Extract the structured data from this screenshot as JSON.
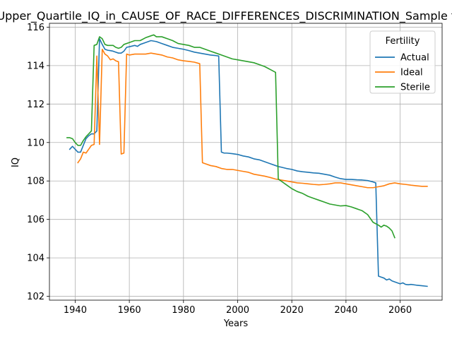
{
  "chart_data": {
    "type": "line",
    "title": "Upper_Quartile_IQ_in_CAUSE_OF_RACE_DIFFERENCES_DISCRIMINATION_Sample f",
    "xlabel": "Years",
    "ylabel": "IQ",
    "xlim": [
      1930.5,
      2075.5
    ],
    "ylim": [
      101.8,
      116.2
    ],
    "xticks": [
      1940,
      1960,
      1980,
      2000,
      2020,
      2040,
      2060
    ],
    "yticks": [
      102,
      104,
      106,
      108,
      110,
      112,
      114,
      116
    ],
    "grid": true,
    "legend": {
      "title": "Fertility",
      "position": "upper right"
    },
    "series": [
      {
        "name": "Actual",
        "color": "#1f77b4",
        "points": [
          [
            1938,
            109.65
          ],
          [
            1939,
            109.8
          ],
          [
            1940,
            109.65
          ],
          [
            1941,
            109.5
          ],
          [
            1942,
            109.5
          ],
          [
            1943,
            109.85
          ],
          [
            1944,
            110.2
          ],
          [
            1945,
            110.35
          ],
          [
            1946,
            110.45
          ],
          [
            1947,
            110.45
          ],
          [
            1948,
            110.6
          ],
          [
            1949,
            115.4
          ],
          [
            1950,
            115.1
          ],
          [
            1951,
            114.85
          ],
          [
            1952,
            114.8
          ],
          [
            1953,
            114.78
          ],
          [
            1954,
            114.75
          ],
          [
            1955,
            114.7
          ],
          [
            1956,
            114.65
          ],
          [
            1957,
            114.65
          ],
          [
            1958,
            114.75
          ],
          [
            1959,
            114.95
          ],
          [
            1960,
            114.98
          ],
          [
            1962,
            115.05
          ],
          [
            1963,
            115.0
          ],
          [
            1964,
            115.1
          ],
          [
            1966,
            115.2
          ],
          [
            1968,
            115.3
          ],
          [
            1970,
            115.25
          ],
          [
            1972,
            115.15
          ],
          [
            1974,
            115.05
          ],
          [
            1976,
            114.95
          ],
          [
            1978,
            114.9
          ],
          [
            1980,
            114.85
          ],
          [
            1982,
            114.78
          ],
          [
            1984,
            114.7
          ],
          [
            1986,
            114.65
          ],
          [
            1988,
            114.6
          ],
          [
            1990,
            114.55
          ],
          [
            1992,
            114.52
          ],
          [
            1993,
            114.5
          ],
          [
            1994,
            109.5
          ],
          [
            1995,
            109.45
          ],
          [
            1996,
            109.45
          ],
          [
            1998,
            109.42
          ],
          [
            2000,
            109.38
          ],
          [
            2002,
            109.3
          ],
          [
            2004,
            109.25
          ],
          [
            2006,
            109.15
          ],
          [
            2008,
            109.1
          ],
          [
            2010,
            109.0
          ],
          [
            2012,
            108.9
          ],
          [
            2014,
            108.8
          ],
          [
            2015,
            108.75
          ],
          [
            2016,
            108.72
          ],
          [
            2018,
            108.65
          ],
          [
            2020,
            108.6
          ],
          [
            2022,
            108.52
          ],
          [
            2024,
            108.48
          ],
          [
            2026,
            108.45
          ],
          [
            2028,
            108.42
          ],
          [
            2030,
            108.4
          ],
          [
            2032,
            108.35
          ],
          [
            2034,
            108.3
          ],
          [
            2036,
            108.2
          ],
          [
            2038,
            108.12
          ],
          [
            2040,
            108.08
          ],
          [
            2042,
            108.08
          ],
          [
            2044,
            108.06
          ],
          [
            2046,
            108.05
          ],
          [
            2048,
            108.02
          ],
          [
            2050,
            107.95
          ],
          [
            2051,
            107.9
          ],
          [
            2052,
            103.05
          ],
          [
            2053,
            103.0
          ],
          [
            2054,
            102.95
          ],
          [
            2055,
            102.85
          ],
          [
            2056,
            102.9
          ],
          [
            2057,
            102.8
          ],
          [
            2058,
            102.75
          ],
          [
            2059,
            102.7
          ],
          [
            2060,
            102.65
          ],
          [
            2061,
            102.7
          ],
          [
            2062,
            102.62
          ],
          [
            2063,
            102.6
          ],
          [
            2064,
            102.62
          ],
          [
            2066,
            102.58
          ],
          [
            2068,
            102.55
          ],
          [
            2070,
            102.52
          ]
        ]
      },
      {
        "name": "Ideal",
        "color": "#ff7f0e",
        "points": [
          [
            1941,
            108.95
          ],
          [
            1942,
            109.15
          ],
          [
            1943,
            109.5
          ],
          [
            1944,
            109.45
          ],
          [
            1945,
            109.65
          ],
          [
            1946,
            109.85
          ],
          [
            1947,
            109.9
          ],
          [
            1948,
            114.5
          ],
          [
            1949,
            109.9
          ],
          [
            1950,
            114.85
          ],
          [
            1951,
            114.6
          ],
          [
            1952,
            114.5
          ],
          [
            1953,
            114.3
          ],
          [
            1954,
            114.35
          ],
          [
            1955,
            114.25
          ],
          [
            1956,
            114.2
          ],
          [
            1957,
            109.4
          ],
          [
            1958,
            109.45
          ],
          [
            1959,
            114.6
          ],
          [
            1960,
            114.55
          ],
          [
            1962,
            114.6
          ],
          [
            1964,
            114.6
          ],
          [
            1966,
            114.6
          ],
          [
            1968,
            114.65
          ],
          [
            1970,
            114.6
          ],
          [
            1972,
            114.55
          ],
          [
            1974,
            114.45
          ],
          [
            1976,
            114.4
          ],
          [
            1978,
            114.3
          ],
          [
            1980,
            114.25
          ],
          [
            1982,
            114.22
          ],
          [
            1984,
            114.18
          ],
          [
            1986,
            114.1
          ],
          [
            1987,
            108.95
          ],
          [
            1988,
            108.9
          ],
          [
            1990,
            108.8
          ],
          [
            1992,
            108.75
          ],
          [
            1994,
            108.65
          ],
          [
            1996,
            108.6
          ],
          [
            1998,
            108.6
          ],
          [
            2000,
            108.55
          ],
          [
            2002,
            108.5
          ],
          [
            2004,
            108.45
          ],
          [
            2006,
            108.35
          ],
          [
            2008,
            108.3
          ],
          [
            2010,
            108.25
          ],
          [
            2012,
            108.18
          ],
          [
            2014,
            108.1
          ],
          [
            2016,
            108.05
          ],
          [
            2018,
            108.0
          ],
          [
            2020,
            107.95
          ],
          [
            2022,
            107.9
          ],
          [
            2024,
            107.88
          ],
          [
            2026,
            107.85
          ],
          [
            2028,
            107.82
          ],
          [
            2030,
            107.8
          ],
          [
            2032,
            107.82
          ],
          [
            2034,
            107.85
          ],
          [
            2036,
            107.9
          ],
          [
            2038,
            107.9
          ],
          [
            2040,
            107.85
          ],
          [
            2042,
            107.8
          ],
          [
            2044,
            107.75
          ],
          [
            2046,
            107.7
          ],
          [
            2048,
            107.65
          ],
          [
            2050,
            107.65
          ],
          [
            2052,
            107.7
          ],
          [
            2054,
            107.75
          ],
          [
            2056,
            107.85
          ],
          [
            2058,
            107.9
          ],
          [
            2060,
            107.85
          ],
          [
            2062,
            107.82
          ],
          [
            2064,
            107.78
          ],
          [
            2066,
            107.75
          ],
          [
            2068,
            107.72
          ],
          [
            2070,
            107.72
          ]
        ]
      },
      {
        "name": "Sterile",
        "color": "#2ca02c",
        "points": [
          [
            1937,
            110.25
          ],
          [
            1938,
            110.25
          ],
          [
            1939,
            110.2
          ],
          [
            1940,
            110.0
          ],
          [
            1941,
            109.85
          ],
          [
            1942,
            109.85
          ],
          [
            1943,
            110.1
          ],
          [
            1944,
            110.3
          ],
          [
            1945,
            110.45
          ],
          [
            1946,
            110.6
          ],
          [
            1947,
            115.05
          ],
          [
            1948,
            115.1
          ],
          [
            1949,
            115.5
          ],
          [
            1950,
            115.4
          ],
          [
            1951,
            115.1
          ],
          [
            1952,
            115.05
          ],
          [
            1953,
            115.05
          ],
          [
            1954,
            115.05
          ],
          [
            1955,
            114.95
          ],
          [
            1956,
            114.9
          ],
          [
            1957,
            114.95
          ],
          [
            1958,
            115.1
          ],
          [
            1960,
            115.2
          ],
          [
            1962,
            115.3
          ],
          [
            1964,
            115.3
          ],
          [
            1966,
            115.45
          ],
          [
            1968,
            115.55
          ],
          [
            1969,
            115.6
          ],
          [
            1970,
            115.5
          ],
          [
            1972,
            115.5
          ],
          [
            1974,
            115.4
          ],
          [
            1976,
            115.3
          ],
          [
            1978,
            115.15
          ],
          [
            1980,
            115.1
          ],
          [
            1982,
            115.05
          ],
          [
            1984,
            114.95
          ],
          [
            1986,
            114.95
          ],
          [
            1988,
            114.85
          ],
          [
            1990,
            114.75
          ],
          [
            1992,
            114.65
          ],
          [
            1994,
            114.55
          ],
          [
            1996,
            114.45
          ],
          [
            1998,
            114.35
          ],
          [
            2000,
            114.3
          ],
          [
            2002,
            114.25
          ],
          [
            2004,
            114.2
          ],
          [
            2006,
            114.15
          ],
          [
            2008,
            114.05
          ],
          [
            2010,
            113.95
          ],
          [
            2012,
            113.8
          ],
          [
            2014,
            113.65
          ],
          [
            2015,
            108.1
          ],
          [
            2016,
            108.0
          ],
          [
            2018,
            107.8
          ],
          [
            2020,
            107.6
          ],
          [
            2022,
            107.45
          ],
          [
            2024,
            107.35
          ],
          [
            2026,
            107.2
          ],
          [
            2028,
            107.1
          ],
          [
            2030,
            107.0
          ],
          [
            2032,
            106.9
          ],
          [
            2034,
            106.8
          ],
          [
            2036,
            106.75
          ],
          [
            2038,
            106.7
          ],
          [
            2040,
            106.72
          ],
          [
            2042,
            106.65
          ],
          [
            2044,
            106.55
          ],
          [
            2046,
            106.45
          ],
          [
            2048,
            106.25
          ],
          [
            2050,
            105.85
          ],
          [
            2052,
            105.7
          ],
          [
            2053,
            105.6
          ],
          [
            2054,
            105.7
          ],
          [
            2055,
            105.65
          ],
          [
            2056,
            105.55
          ],
          [
            2057,
            105.4
          ],
          [
            2058,
            105.05
          ]
        ]
      }
    ]
  }
}
